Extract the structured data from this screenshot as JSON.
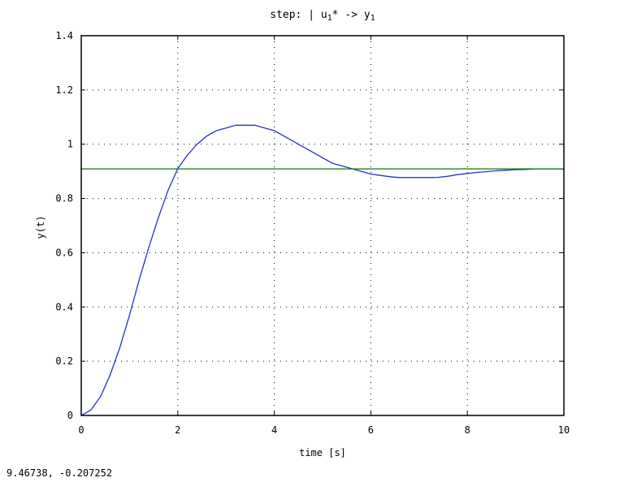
{
  "chart_data": {
    "type": "line",
    "title": "step: | u1* -> y1",
    "title_parts": {
      "prefix": "step: | u",
      "sub1": "1",
      "mid": "* -> y",
      "sub2": "1"
    },
    "xlabel": "time [s]",
    "ylabel": "y(t)",
    "xlim": [
      0,
      10
    ],
    "ylim": [
      0,
      1.4
    ],
    "x_ticks": [
      0,
      2,
      4,
      6,
      8,
      10
    ],
    "y_ticks": [
      0,
      0.2,
      0.4,
      0.6,
      0.8,
      1,
      1.2,
      1.4
    ],
    "x_tick_labels": [
      "0",
      "2",
      "4",
      "6",
      "8",
      "10"
    ],
    "y_tick_labels": [
      "0",
      "0.2",
      "0.4",
      "0.6",
      "0.8",
      "1",
      "1.2",
      "1.4"
    ],
    "grid": true,
    "series": [
      {
        "color": "#2233cc",
        "x": [
          0,
          0.2,
          0.4,
          0.6,
          0.8,
          1.0,
          1.2,
          1.4,
          1.6,
          1.8,
          2.0,
          2.2,
          2.4,
          2.6,
          2.8,
          3.0,
          3.2,
          3.4,
          3.6,
          3.8,
          4.0,
          4.2,
          4.4,
          4.6,
          4.8,
          5.0,
          5.2,
          5.4,
          5.6,
          5.8,
          6.0,
          6.2,
          6.4,
          6.6,
          6.8,
          7.0,
          7.2,
          7.4,
          7.6,
          7.8,
          8.0,
          8.2,
          8.4,
          8.6,
          8.8,
          9.0,
          9.2,
          9.4,
          9.6,
          9.8,
          10.0
        ],
        "y": [
          0,
          0.02,
          0.07,
          0.15,
          0.25,
          0.37,
          0.5,
          0.62,
          0.73,
          0.83,
          0.91,
          0.96,
          1.0,
          1.03,
          1.05,
          1.06,
          1.07,
          1.07,
          1.07,
          1.06,
          1.05,
          1.03,
          1.01,
          0.99,
          0.97,
          0.95,
          0.93,
          0.92,
          0.91,
          0.9,
          0.89,
          0.885,
          0.88,
          0.877,
          0.877,
          0.877,
          0.877,
          0.878,
          0.882,
          0.888,
          0.892,
          0.896,
          0.899,
          0.902,
          0.904,
          0.906,
          0.907,
          0.909,
          0.909,
          0.909,
          0.909
        ]
      },
      {
        "color": "#0a7a0a",
        "x": [
          0,
          10
        ],
        "y": [
          0.909,
          0.909
        ]
      }
    ]
  },
  "status": {
    "coords": "9.46738, -0.207252"
  }
}
